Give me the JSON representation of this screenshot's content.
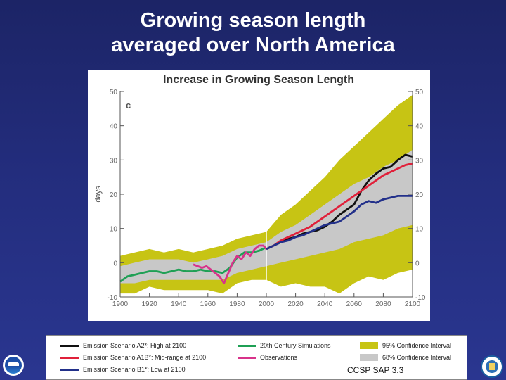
{
  "slide": {
    "title_line1": "Growing season length",
    "title_line2": "averaged over North America",
    "source": "CCSP SAP 3.3"
  },
  "chart_data": {
    "type": "line",
    "title": "Increase in Growing Season Length",
    "panel_label": "c",
    "xlabel": "",
    "ylabel": "days",
    "xlim": [
      1900,
      2100
    ],
    "ylim": [
      -10,
      50
    ],
    "xticks": [
      1900,
      1920,
      1940,
      1960,
      1980,
      2000,
      2020,
      2040,
      2060,
      2080,
      2100
    ],
    "yticks": [
      -10,
      0,
      10,
      20,
      30,
      40,
      50
    ],
    "grid": false,
    "colors": {
      "a2": "#111111",
      "a1b": "#e0203a",
      "b1": "#22308a",
      "sim20c": "#1fa055",
      "obs": "#d8338a",
      "ci95": "#c7c414",
      "ci68": "#c8c8c8"
    },
    "ci95": {
      "x": [
        1900,
        1910,
        1920,
        1930,
        1940,
        1950,
        1960,
        1970,
        1980,
        1990,
        2000,
        2010,
        2020,
        2030,
        2040,
        2050,
        2060,
        2070,
        2080,
        2090,
        2100
      ],
      "lower": [
        -9,
        -9,
        -7,
        -8,
        -8,
        -8,
        -8,
        -9,
        -6,
        -5,
        -5,
        -7,
        -6,
        -7,
        -7,
        -9,
        -6,
        -4,
        -5,
        -3,
        -2
      ],
      "upper": [
        2,
        3,
        4,
        3,
        4,
        3,
        4,
        5,
        7,
        8,
        9,
        14,
        17,
        21,
        25,
        30,
        34,
        38,
        42,
        46,
        49
      ]
    },
    "ci68": {
      "x": [
        1900,
        1910,
        1920,
        1930,
        1940,
        1950,
        1960,
        1970,
        1980,
        1990,
        2000,
        2010,
        2020,
        2030,
        2040,
        2050,
        2060,
        2070,
        2080,
        2090,
        2100
      ],
      "lower": [
        -6,
        -6,
        -5,
        -5,
        -5,
        -5,
        -5,
        -5,
        -3,
        -2,
        -1,
        0,
        1,
        2,
        3,
        4,
        6,
        7,
        8,
        10,
        11
      ],
      "upper": [
        -1,
        0,
        1,
        1,
        1,
        0,
        1,
        2,
        4,
        5,
        6,
        9,
        11,
        14,
        17,
        20,
        23,
        25,
        28,
        30,
        33
      ]
    },
    "series": [
      {
        "key": "sim20c",
        "x": [
          1900,
          1905,
          1910,
          1915,
          1920,
          1925,
          1930,
          1935,
          1940,
          1945,
          1950,
          1955,
          1960,
          1965,
          1970,
          1975,
          1980,
          1985,
          1990,
          1995,
          2000
        ],
        "y": [
          -5.5,
          -4,
          -3.5,
          -3,
          -2.5,
          -2.5,
          -3,
          -2.5,
          -2,
          -2.5,
          -2.5,
          -2,
          -2.5,
          -2.5,
          -3,
          -1.5,
          1.5,
          3,
          3,
          3.5,
          4.5
        ]
      },
      {
        "key": "obs",
        "x": [
          1950,
          1953,
          1956,
          1959,
          1962,
          1965,
          1968,
          1971,
          1974,
          1977,
          1980,
          1983,
          1986,
          1989,
          1992,
          1995,
          1998,
          2000
        ],
        "y": [
          -0.5,
          -1,
          -1.5,
          -1,
          -2,
          -3,
          -4,
          -6,
          -3,
          0,
          2,
          1,
          3,
          2,
          4,
          5,
          5,
          4
        ]
      },
      {
        "key": "a2",
        "x": [
          2000,
          2005,
          2010,
          2015,
          2020,
          2025,
          2030,
          2035,
          2040,
          2045,
          2050,
          2055,
          2060,
          2065,
          2070,
          2075,
          2080,
          2085,
          2090,
          2095,
          2100
        ],
        "y": [
          4,
          5,
          6,
          7,
          7.5,
          8.5,
          9,
          9.5,
          10.5,
          12,
          14,
          15.5,
          17,
          21,
          24,
          26,
          27.5,
          28,
          30,
          31.5,
          31
        ]
      },
      {
        "key": "a1b",
        "x": [
          2000,
          2005,
          2010,
          2015,
          2020,
          2025,
          2030,
          2035,
          2040,
          2045,
          2050,
          2055,
          2060,
          2065,
          2070,
          2075,
          2080,
          2085,
          2090,
          2095,
          2100
        ],
        "y": [
          4,
          5,
          6.5,
          7.5,
          8.5,
          9.5,
          10.5,
          12,
          13.5,
          15,
          16.5,
          18,
          19.5,
          21,
          22.5,
          24,
          25.5,
          26.5,
          27.5,
          28.5,
          29
        ]
      },
      {
        "key": "b1",
        "x": [
          2000,
          2005,
          2010,
          2015,
          2020,
          2025,
          2030,
          2035,
          2040,
          2045,
          2050,
          2055,
          2060,
          2065,
          2070,
          2075,
          2080,
          2085,
          2090,
          2095,
          2100
        ],
        "y": [
          4,
          5,
          6,
          6.5,
          7.5,
          8,
          9,
          10,
          11,
          11.5,
          12,
          13.5,
          15,
          17,
          18,
          17.5,
          18.5,
          19,
          19.5,
          19.5,
          19.5
        ]
      }
    ]
  },
  "legend": {
    "items": [
      {
        "key": "a2",
        "label": "Emission Scenario A2*: High at 2100",
        "color": "#111111",
        "swatch": "line"
      },
      {
        "key": "a1b",
        "label": "Emission Scenario A1B*: Mid-range at 2100",
        "color": "#e0203a",
        "swatch": "line"
      },
      {
        "key": "b1",
        "label": "Emission Scenario B1*: Low at 2100",
        "color": "#22308a",
        "swatch": "line"
      },
      {
        "key": "sim20c",
        "label": "20th Century Simulations",
        "color": "#1fa055",
        "swatch": "line"
      },
      {
        "key": "obs",
        "label": "Observations",
        "color": "#d8338a",
        "swatch": "line"
      },
      {
        "key": "ci95",
        "label": "95% Confidence Interval",
        "color": "#c7c414",
        "swatch": "box"
      },
      {
        "key": "ci68",
        "label": "68% Confidence Interval",
        "color": "#c8c8c8",
        "swatch": "box"
      }
    ]
  },
  "logos": {
    "left_icon": "noaa-logo-icon",
    "right_icon": "doe-seal-icon"
  }
}
